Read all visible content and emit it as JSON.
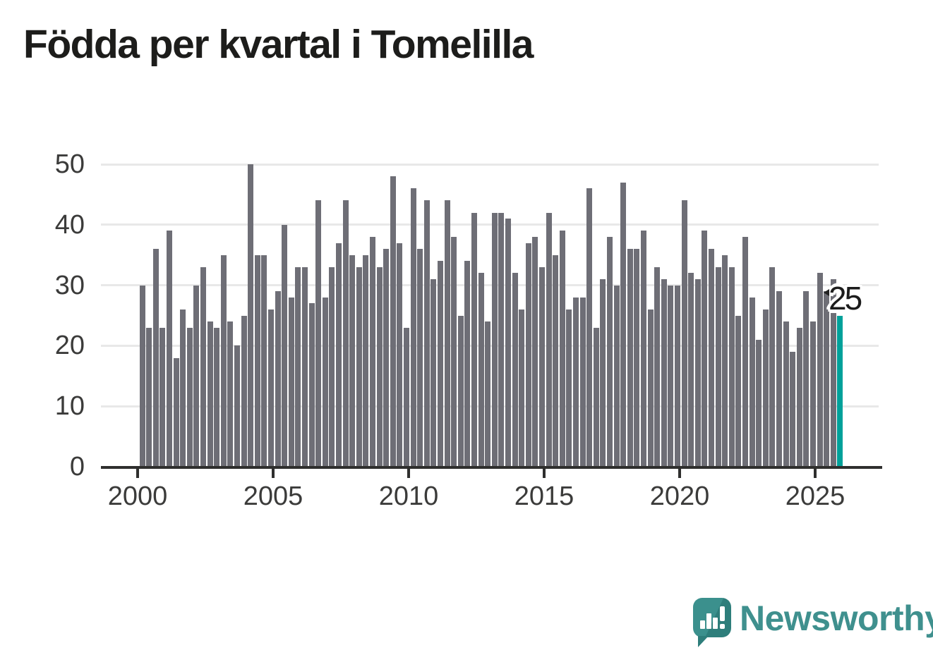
{
  "title": "Födda per kvartal i Tomelilla",
  "chart_data": {
    "type": "bar",
    "title": "Födda per kvartal i Tomelilla",
    "start_year": 2000,
    "start_quarter": 1,
    "period": "quarterly",
    "values": [
      30,
      23,
      36,
      23,
      39,
      18,
      26,
      23,
      30,
      33,
      24,
      23,
      35,
      24,
      20,
      25,
      50,
      35,
      35,
      26,
      29,
      40,
      28,
      33,
      33,
      27,
      44,
      28,
      33,
      37,
      44,
      35,
      33,
      35,
      38,
      33,
      36,
      48,
      37,
      23,
      46,
      36,
      44,
      31,
      34,
      44,
      38,
      25,
      34,
      42,
      32,
      24,
      42,
      42,
      41,
      32,
      26,
      37,
      38,
      33,
      42,
      35,
      39,
      26,
      28,
      28,
      46,
      23,
      31,
      38,
      30,
      47,
      36,
      36,
      39,
      26,
      33,
      31,
      30,
      30,
      44,
      32,
      31,
      39,
      36,
      33,
      35,
      33,
      25,
      38,
      28,
      21,
      26,
      33,
      29,
      24,
      19,
      23,
      29,
      24,
      32,
      29,
      31,
      25
    ],
    "y_ticks": [
      0,
      10,
      20,
      30,
      40,
      50
    ],
    "x_tick_years": [
      2000,
      2005,
      2010,
      2015,
      2020,
      2025
    ],
    "ylim": [
      0,
      50
    ],
    "grid": true,
    "legend_position": "none",
    "highlight_last_bar": true,
    "bar_color": "#6e6e76",
    "highlight_color": "#00a19a"
  },
  "annotation": {
    "latest_value_label": "25"
  },
  "branding": {
    "wordmark": "Newsworthy"
  },
  "colors": {
    "background": "#ffffff",
    "title_text": "#1d1d1b",
    "axis_text": "#3b3b3a",
    "axis_line": "#2f2f2e",
    "gridline": "#e8e8e8",
    "bar": "#6e6e76",
    "highlight": "#00a19a",
    "brand_teal": "#3f908e"
  }
}
